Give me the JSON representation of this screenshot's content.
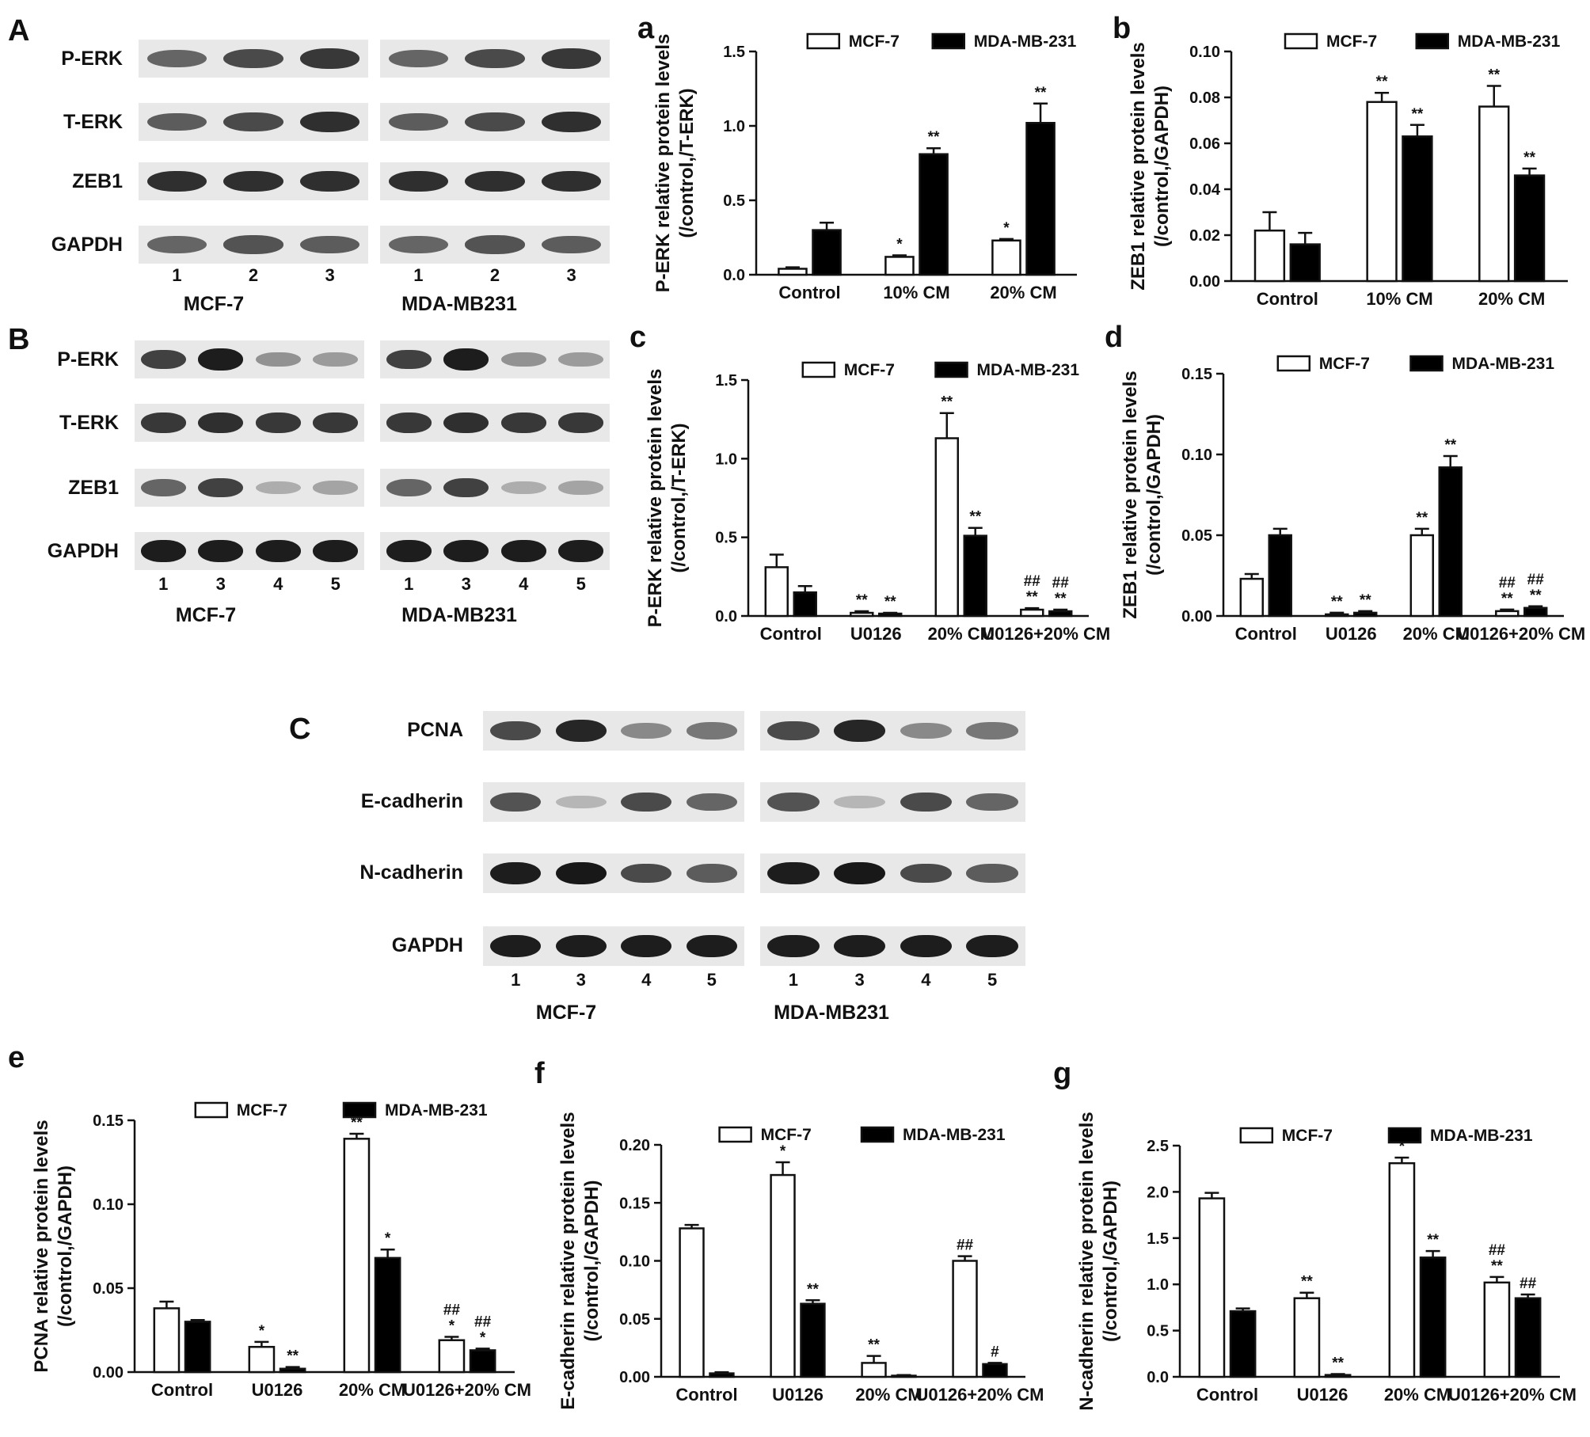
{
  "panel_letters": [
    "A",
    "B",
    "C"
  ],
  "blots": [
    {
      "rows": [
        "P-ERK",
        "T-ERK",
        "ZEB1",
        "GAPDH"
      ],
      "groups": [
        {
          "cell": "MCF-7",
          "lanes": [
            "1",
            "2",
            "3"
          ]
        },
        {
          "cell": "MDA-MB231",
          "lanes": [
            "1",
            "2",
            "3"
          ]
        }
      ]
    },
    {
      "rows": [
        "P-ERK",
        "T-ERK",
        "ZEB1",
        "GAPDH"
      ],
      "groups": [
        {
          "cell": "MCF-7",
          "lanes": [
            "1",
            "3",
            "4",
            "5"
          ]
        },
        {
          "cell": "MDA-MB231",
          "lanes": [
            "1",
            "3",
            "4",
            "5"
          ]
        }
      ]
    },
    {
      "rows": [
        "PCNA",
        "E-cadherin",
        "N-cadherin",
        "GAPDH"
      ],
      "groups": [
        {
          "cell": "MCF-7",
          "lanes": [
            "1",
            "3",
            "4",
            "5"
          ]
        },
        {
          "cell": "MDA-MB231",
          "lanes": [
            "1",
            "3",
            "4",
            "5"
          ]
        }
      ]
    }
  ],
  "colors": {
    "mcf7": "#ffffff",
    "mda": "#000000"
  },
  "chart_data": [
    {
      "panel": "a",
      "type": "bar",
      "ylabel": [
        "P-ERK relative protein levels",
        "(/control,/T-ERK)"
      ],
      "categories": [
        "Control",
        "10% CM",
        "20% CM"
      ],
      "ylim": [
        0,
        1.5
      ],
      "yticks": [
        "0.0",
        "0.5",
        "1.0",
        "1.5"
      ],
      "series": [
        {
          "name": "MCF-7",
          "values": [
            0.04,
            0.12,
            0.23
          ],
          "errors": [
            0.01,
            0.01,
            0.01
          ],
          "annotations": [
            [],
            [
              "*"
            ],
            [
              "*"
            ]
          ]
        },
        {
          "name": "MDA-MB-231",
          "values": [
            0.3,
            0.81,
            1.02
          ],
          "errors": [
            0.05,
            0.04,
            0.13
          ],
          "annotations": [
            [],
            [
              "**"
            ],
            [
              "**"
            ]
          ]
        }
      ]
    },
    {
      "panel": "b",
      "type": "bar",
      "ylabel": [
        "ZEB1 relative protein levels",
        "(/control,/GAPDH)"
      ],
      "categories": [
        "Control",
        "10% CM",
        "20% CM"
      ],
      "ylim": [
        0,
        0.1
      ],
      "yticks": [
        "0.00",
        "0.02",
        "0.04",
        "0.06",
        "0.08",
        "0.10"
      ],
      "series": [
        {
          "name": "MCF-7",
          "values": [
            0.022,
            0.078,
            0.076
          ],
          "errors": [
            0.008,
            0.004,
            0.009
          ],
          "annotations": [
            [],
            [
              "**"
            ],
            [
              "**"
            ]
          ]
        },
        {
          "name": "MDA-MB-231",
          "values": [
            0.016,
            0.063,
            0.046
          ],
          "errors": [
            0.005,
            0.005,
            0.003
          ],
          "annotations": [
            [],
            [
              "**"
            ],
            [
              "**"
            ]
          ]
        }
      ]
    },
    {
      "panel": "c",
      "type": "bar",
      "ylabel": [
        "P-ERK relative protein levels",
        "(/control,/T-ERK)"
      ],
      "categories": [
        "Control",
        "U0126",
        "20% CM",
        "U0126+20% CM"
      ],
      "ylim": [
        0,
        1.5
      ],
      "yticks": [
        "0.0",
        "0.5",
        "1.0",
        "1.5"
      ],
      "series": [
        {
          "name": "MCF-7",
          "values": [
            0.31,
            0.02,
            1.13,
            0.04
          ],
          "errors": [
            0.08,
            0.01,
            0.16,
            0.01
          ],
          "annotations": [
            [],
            [
              "**"
            ],
            [
              "**"
            ],
            [
              "##",
              "**"
            ]
          ]
        },
        {
          "name": "MDA-MB-231",
          "values": [
            0.15,
            0.015,
            0.51,
            0.03
          ],
          "errors": [
            0.04,
            0.005,
            0.05,
            0.01
          ],
          "annotations": [
            [],
            [
              "**"
            ],
            [
              "**"
            ],
            [
              "##",
              "**"
            ]
          ]
        }
      ]
    },
    {
      "panel": "d",
      "type": "bar",
      "ylabel": [
        "ZEB1 relative protein levels",
        "(/control,/GAPDH)"
      ],
      "categories": [
        "Control",
        "U0126",
        "20% CM",
        "U0126+20% CM"
      ],
      "ylim": [
        0,
        0.15
      ],
      "yticks": [
        "0.00",
        "0.05",
        "0.10",
        "0.15"
      ],
      "series": [
        {
          "name": "MCF-7",
          "values": [
            0.023,
            0.001,
            0.05,
            0.003
          ],
          "errors": [
            0.003,
            0.001,
            0.004,
            0.001
          ],
          "annotations": [
            [],
            [
              "**"
            ],
            [
              "**"
            ],
            [
              "##",
              "**"
            ]
          ]
        },
        {
          "name": "MDA-MB-231",
          "values": [
            0.05,
            0.002,
            0.092,
            0.005
          ],
          "errors": [
            0.004,
            0.001,
            0.007,
            0.001
          ],
          "annotations": [
            [],
            [
              "**"
            ],
            [
              "**"
            ],
            [
              "##",
              "**"
            ]
          ]
        }
      ]
    },
    {
      "panel": "e",
      "type": "bar",
      "ylabel": [
        "PCNA relative protein levels",
        "(/control,/GAPDH)"
      ],
      "categories": [
        "Control",
        "U0126",
        "20% CM",
        "U0126+20% CM"
      ],
      "ylim": [
        0,
        0.15
      ],
      "yticks": [
        "0.00",
        "0.05",
        "0.10",
        "0.15"
      ],
      "series": [
        {
          "name": "MCF-7",
          "values": [
            0.038,
            0.015,
            0.139,
            0.019
          ],
          "errors": [
            0.004,
            0.003,
            0.003,
            0.002
          ],
          "annotations": [
            [],
            [
              "*"
            ],
            [
              "**"
            ],
            [
              "##",
              "*"
            ]
          ]
        },
        {
          "name": "MDA-MB-231",
          "values": [
            0.03,
            0.002,
            0.068,
            0.013
          ],
          "errors": [
            0.001,
            0.001,
            0.005,
            0.001
          ],
          "annotations": [
            [],
            [
              "**"
            ],
            [
              "*"
            ],
            [
              "##",
              "*"
            ]
          ]
        }
      ]
    },
    {
      "panel": "f",
      "type": "bar",
      "ylabel": [
        "E-cadherin relative protein levels",
        "(/control,/GAPDH)"
      ],
      "categories": [
        "Control",
        "U0126",
        "20% CM",
        "U0126+20% CM"
      ],
      "ylim": [
        0,
        0.2
      ],
      "yticks": [
        "0.00",
        "0.05",
        "0.10",
        "0.15",
        "0.20"
      ],
      "series": [
        {
          "name": "MCF-7",
          "values": [
            0.128,
            0.174,
            0.012,
            0.1
          ],
          "errors": [
            0.003,
            0.011,
            0.006,
            0.004
          ],
          "annotations": [
            [],
            [
              "*"
            ],
            [
              "**"
            ],
            [
              "##"
            ]
          ]
        },
        {
          "name": "MDA-MB-231",
          "values": [
            0.003,
            0.063,
            0.001,
            0.011
          ],
          "errors": [
            0.001,
            0.003,
            0.0005,
            0.001
          ],
          "annotations": [
            [],
            [
              "**"
            ],
            [],
            [
              "#"
            ]
          ]
        }
      ]
    },
    {
      "panel": "g",
      "type": "bar",
      "ylabel": [
        "N-cadherin relative protein levels",
        "(/control,/GAPDH)"
      ],
      "categories": [
        "Control",
        "U0126",
        "20% CM",
        "U0126+20% CM"
      ],
      "ylim": [
        0,
        2.5
      ],
      "yticks": [
        "0.0",
        "0.5",
        "1.0",
        "1.5",
        "2.0",
        "2.5"
      ],
      "series": [
        {
          "name": "MCF-7",
          "values": [
            1.93,
            0.85,
            2.31,
            1.02
          ],
          "errors": [
            0.06,
            0.06,
            0.06,
            0.06
          ],
          "annotations": [
            [],
            [
              "**"
            ],
            [
              "*"
            ],
            [
              "##",
              "**"
            ]
          ]
        },
        {
          "name": "MDA-MB-231",
          "values": [
            0.71,
            0.02,
            1.29,
            0.85
          ],
          "errors": [
            0.03,
            0.01,
            0.07,
            0.04
          ],
          "annotations": [
            [],
            [
              "**"
            ],
            [
              "**"
            ],
            [
              "##"
            ]
          ]
        }
      ]
    }
  ]
}
